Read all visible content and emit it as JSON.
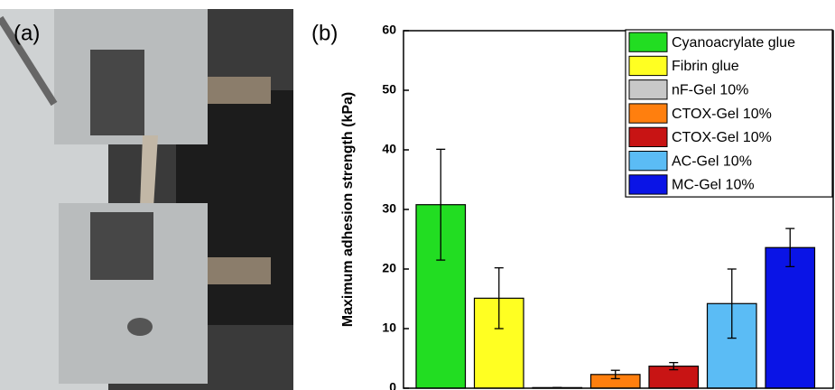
{
  "photo_label": "(a)",
  "chart_data": {
    "type": "bar",
    "panel_label": "(b)",
    "y_label": "Maximum adhesion strength (kPa)",
    "ylim": [
      0,
      60
    ],
    "yticks": [
      0,
      10,
      20,
      30,
      40,
      50,
      60
    ],
    "series": [
      {
        "name": "Cyanoacrylate glue",
        "color": "#22dd22",
        "values": [
          30.8
        ],
        "errors": [
          9.3
        ]
      },
      {
        "name": "Fibrin glue",
        "color": "#ffff22",
        "values": [
          15.1
        ],
        "errors": [
          5.1
        ]
      },
      {
        "name": "nF-Gel 10%",
        "color": "#c8c8c8",
        "values": [
          0.1
        ],
        "errors": [
          0
        ]
      },
      {
        "name": "CTOX-Gel 10%",
        "color": "#ff7f0e",
        "values": [
          2.3
        ],
        "errors": [
          0.7
        ]
      },
      {
        "name": "CTOX-Gel 10%",
        "color": "#c81414",
        "values": [
          3.7
        ],
        "errors": [
          0.6
        ]
      },
      {
        "name": "AC-Gel 10%",
        "color": "#5bbcf5",
        "values": [
          14.2
        ],
        "errors": [
          5.8
        ]
      },
      {
        "name": "MC-Gel 10%",
        "color": "#0a14e6",
        "values": [
          23.6
        ],
        "errors": [
          3.2
        ]
      }
    ]
  }
}
